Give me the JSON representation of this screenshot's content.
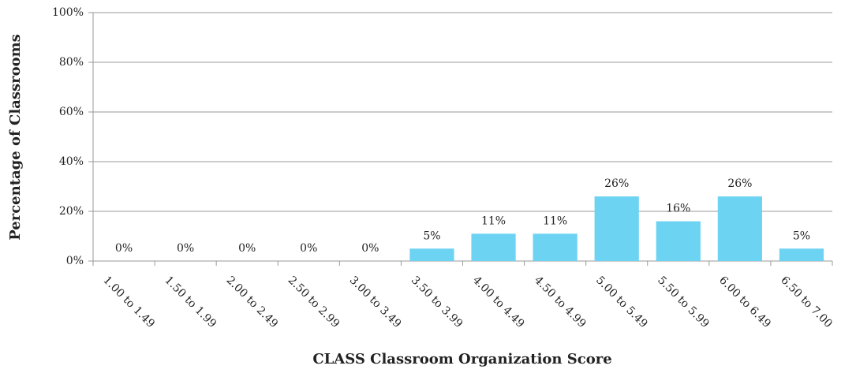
{
  "chart_data": {
    "type": "bar",
    "y_label": "Percentage of Classrooms",
    "x_label": "CLASS Classroom Organization Score",
    "categories": [
      "1.00 to 1.49",
      "1.50 to 1.99",
      "2.00 to 2.49",
      "2.50 to 2.99",
      "3.00 to 3.49",
      "3.50 to 3.99",
      "4.00 to 4.49",
      "4.50 to 4.99",
      "5.00 to 5.49",
      "5.50 to 5.99",
      "6.00 to 6.49",
      "6.50 to 7.00"
    ],
    "values": [
      0,
      0,
      0,
      0,
      0,
      5,
      11,
      11,
      26,
      16,
      26,
      5
    ],
    "value_labels": [
      "0%",
      "0%",
      "0%",
      "0%",
      "0%",
      "5%",
      "11%",
      "11%",
      "26%",
      "16%",
      "26%",
      "5%"
    ],
    "color": "#6dd3f3",
    "ylim": [
      0,
      100
    ],
    "yticks": [
      {
        "value": 0,
        "label": "0%"
      },
      {
        "value": 20,
        "label": "20%"
      },
      {
        "value": 40,
        "label": "40%"
      },
      {
        "value": 60,
        "label": "60%"
      },
      {
        "value": 80,
        "label": "80%"
      },
      {
        "value": 100,
        "label": "100%"
      }
    ],
    "grid": true
  }
}
